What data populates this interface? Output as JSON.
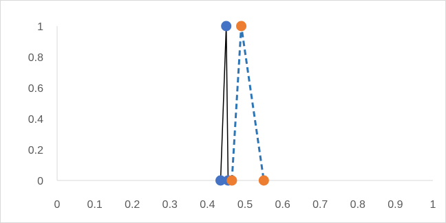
{
  "chart_data": {
    "type": "scatter",
    "title": "",
    "xlabel": "",
    "ylabel": "",
    "xlim": [
      0,
      1
    ],
    "ylim": [
      0,
      1
    ],
    "x_ticks": [
      "0",
      "0.1",
      "0.2",
      "0.3",
      "0.4",
      "0.5",
      "0.6",
      "0.7",
      "0.8",
      "0.9",
      "1"
    ],
    "y_ticks": [
      "0",
      "0.2",
      "0.4",
      "0.6",
      "0.8",
      "1"
    ],
    "grid": false,
    "legend": "none",
    "series": [
      {
        "color": "#4472c4",
        "line_color": "#000000",
        "line_style": "solid",
        "points": [
          {
            "x": 0.435,
            "y": 0
          },
          {
            "x": 0.45,
            "y": 1
          },
          {
            "x": 0.455,
            "y": 0
          }
        ]
      },
      {
        "color": "#ed7d31",
        "line_color": "#2e75b6",
        "line_style": "dashed",
        "points": [
          {
            "x": 0.465,
            "y": 0
          },
          {
            "x": 0.49,
            "y": 1
          },
          {
            "x": 0.55,
            "y": 0
          }
        ]
      }
    ]
  }
}
